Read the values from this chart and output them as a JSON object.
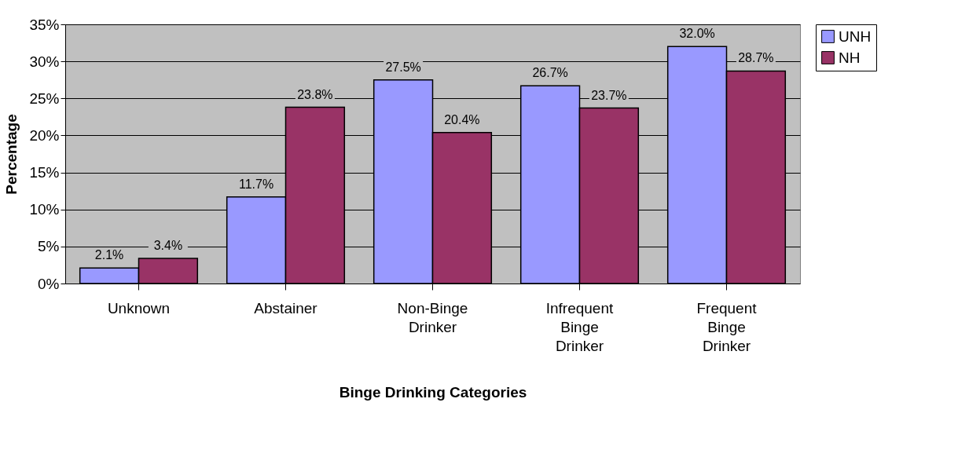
{
  "chart_data": {
    "type": "bar",
    "xlabel": "Binge Drinking Categories",
    "ylabel": "Percentage",
    "categories": [
      "Unknown",
      "Abstainer",
      "Non-Binge Drinker",
      "Infrequent Binge Drinker",
      "Frequent Binge Drinker"
    ],
    "series": [
      {
        "name": "UNH",
        "color": "#9999ff",
        "values": [
          2.1,
          11.7,
          27.5,
          26.7,
          32.0
        ],
        "value_labels": [
          "2.1%",
          "11.7%",
          "27.5%",
          "26.7%",
          "32.0%"
        ]
      },
      {
        "name": "NH",
        "color": "#993366",
        "values": [
          3.4,
          23.8,
          20.4,
          23.7,
          28.7
        ],
        "value_labels": [
          "3.4%",
          "23.8%",
          "20.4%",
          "23.7%",
          "28.7%"
        ]
      }
    ],
    "ylim": [
      0,
      35
    ],
    "yticks": [
      {
        "value": 0,
        "label": "0%"
      },
      {
        "value": 5,
        "label": "5%"
      },
      {
        "value": 10,
        "label": "10%"
      },
      {
        "value": 15,
        "label": "15%"
      },
      {
        "value": 20,
        "label": "20%"
      },
      {
        "value": 25,
        "label": "25%"
      },
      {
        "value": 30,
        "label": "30%"
      },
      {
        "value": 35,
        "label": "35%"
      }
    ],
    "grid": "y",
    "legend": "right"
  }
}
